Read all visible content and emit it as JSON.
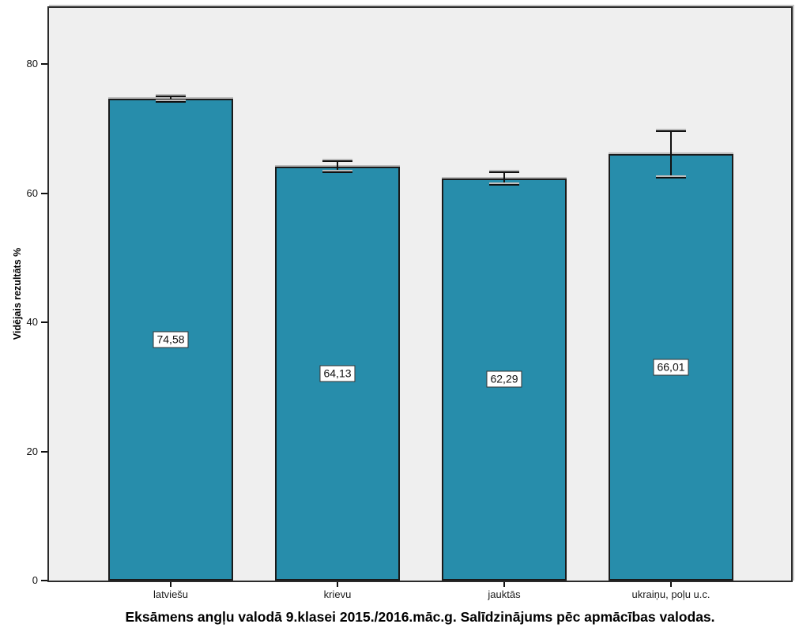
{
  "chart_data": {
    "type": "bar",
    "title": "Eksāmens angļu valodā 9.klasei 2015./2016.māc.g. Salīdzinājums pēc apmācības valodas.",
    "ylabel": "Vidējais rezultāts %",
    "xlabel": "",
    "categories": [
      "latviešu",
      "krievu",
      "jauktās",
      "ukraiņu, poļu u.c."
    ],
    "values": [
      74.58,
      64.13,
      62.29,
      66.01
    ],
    "value_labels": [
      "74,58",
      "64,13",
      "62,29",
      "66,01"
    ],
    "errors": [
      0.45,
      0.85,
      1.0,
      3.6
    ],
    "yticks": [
      0,
      20,
      40,
      60,
      80
    ],
    "ytick_labels": [
      "0",
      "20",
      "40",
      "60",
      "80"
    ],
    "ylim": [
      0,
      88.7
    ],
    "grid": false,
    "legend_position": "none",
    "colors": {
      "bar_fill": "#278dab",
      "bar_border": "#1a1a1a",
      "plot_background": "#efefef",
      "error_bar": "#111111",
      "value_label_background": "#ffffff"
    }
  }
}
